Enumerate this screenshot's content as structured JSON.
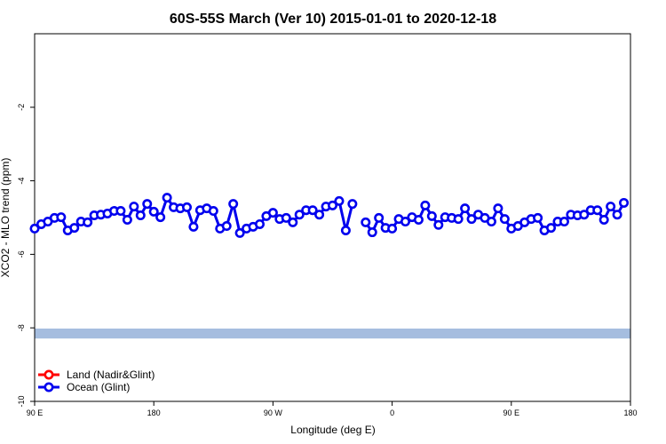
{
  "chart_data": {
    "type": "line",
    "title": "60S-55S March (Ver 10)   2015-01-01 to 2020-12-18",
    "x_label": "Longitude (deg E)",
    "y_label": "XCO2 - MLO trend (ppm)",
    "xlim": [
      90,
      540
    ],
    "ylim": [
      -10,
      0
    ],
    "xticks": [
      {
        "value": 90,
        "label": "90 E"
      },
      180,
      {
        "value": 270,
        "label": "90 W"
      },
      {
        "value": 360,
        "label": "0"
      },
      {
        "value": 450,
        "label": "90 E"
      },
      {
        "value": 540,
        "label": "180"
      }
    ],
    "yticks": [
      -10,
      -8,
      -6,
      -4,
      -2
    ],
    "band": {
      "ymin": -8.29,
      "ymax": -8.02,
      "color": "#a5bddf"
    },
    "legend": "bottom-left",
    "x": [
      90,
      95,
      100,
      105,
      110,
      115,
      120,
      125,
      130,
      135,
      140,
      145,
      150,
      155,
      160,
      165,
      170,
      175,
      180,
      185,
      190,
      195,
      200,
      205,
      210,
      215,
      220,
      225,
      230,
      235,
      240,
      245,
      250,
      255,
      260,
      265,
      270,
      275,
      280,
      285,
      290,
      295,
      300,
      305,
      310,
      315,
      320,
      325,
      330,
      335,
      340,
      345,
      350,
      355,
      360,
      365,
      370,
      375,
      380,
      385,
      390,
      395,
      400,
      405,
      410,
      415,
      420,
      425,
      430,
      435,
      440,
      445,
      450,
      455,
      460,
      465,
      470,
      475,
      480,
      485,
      490,
      495,
      500,
      505,
      510,
      515,
      520,
      525,
      530,
      535
    ],
    "series": [
      {
        "name": "Land (Nadir&Glint)",
        "color": "#ff0000",
        "values": [
          null,
          null,
          null,
          null,
          null,
          null,
          null,
          null,
          null,
          null,
          null,
          null,
          null,
          null,
          null,
          null,
          null,
          null,
          null,
          null,
          null,
          null,
          null,
          null,
          null,
          null,
          null,
          null,
          null,
          null,
          null,
          null,
          null,
          null,
          null,
          null,
          null,
          null,
          null,
          null,
          null,
          null,
          null,
          null,
          null,
          null,
          null,
          null,
          null,
          null,
          null,
          null,
          null,
          null,
          null,
          null,
          null,
          null,
          null,
          null,
          null,
          null,
          null,
          null,
          null,
          null,
          null,
          null,
          null,
          null,
          null,
          null,
          null,
          null,
          null,
          null,
          null,
          null,
          null,
          null,
          null,
          null,
          null,
          null,
          null,
          null,
          null,
          null,
          null,
          null
        ]
      },
      {
        "name": "Ocean (Glint)",
        "color": "#0000ee",
        "values": [
          -5.3,
          -5.18,
          -5.11,
          -5.01,
          -4.99,
          -5.35,
          -5.28,
          -5.11,
          -5.13,
          -4.94,
          -4.92,
          -4.89,
          -4.82,
          -4.82,
          -5.06,
          -4.7,
          -4.94,
          -4.63,
          -4.84,
          -4.99,
          -4.46,
          -4.72,
          -4.75,
          -4.72,
          -5.25,
          -4.8,
          -4.75,
          -4.82,
          -5.3,
          -5.23,
          -4.63,
          -5.42,
          -5.3,
          -5.25,
          -5.18,
          -4.96,
          -4.87,
          -5.04,
          -5.01,
          -5.13,
          -4.92,
          -4.8,
          -4.8,
          -4.92,
          -4.7,
          -4.67,
          -4.55,
          -5.35,
          -4.63,
          null,
          -5.13,
          -5.4,
          -5.01,
          -5.28,
          -5.3,
          -5.04,
          -5.11,
          -4.99,
          -5.06,
          -4.67,
          -4.96,
          -5.2,
          -4.99,
          -5.01,
          -5.04,
          -4.75,
          -5.04,
          -4.92,
          -5.01,
          -5.11,
          -4.75,
          -5.04,
          -5.3,
          -5.23,
          -5.13,
          -5.04,
          -5.01,
          -5.35,
          -5.28,
          -5.11,
          -5.11,
          -4.92,
          -4.94,
          -4.92,
          -4.8,
          -4.8,
          -5.06,
          -4.7,
          -4.92,
          -4.6
        ]
      }
    ]
  }
}
